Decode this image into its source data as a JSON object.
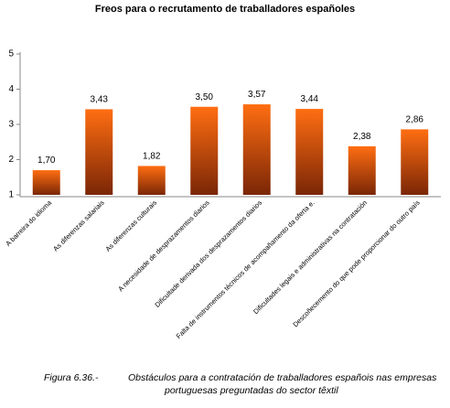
{
  "chart_data": {
    "type": "bar",
    "title": "Freos para o recrutamento de traballadores españoles",
    "categories": [
      "A barreira do idioma",
      "As diferenzas salariais",
      "As diferenzas culturais",
      "A necesidade de desprazamentos diarios",
      "Dificultade derivada dos desprazamentos diarios",
      "Falta de instrumentos técnicos de acompañamento da oferta e.",
      "Dificultades legais e administrativas na contratación",
      "Descoñecemento do que pode proporcionar do outro país"
    ],
    "values": [
      1.7,
      3.43,
      1.82,
      3.5,
      3.57,
      3.44,
      2.38,
      2.86
    ],
    "value_labels": [
      "1,70",
      "3,43",
      "1,82",
      "3,50",
      "3,57",
      "3,44",
      "2,38",
      "2,86"
    ],
    "gradient": [
      "#ff6e12",
      "#7a2606"
    ],
    "ylim": [
      1,
      5
    ],
    "yticks": [
      1,
      2,
      3,
      4,
      5
    ]
  },
  "caption": {
    "label": "Figura 6.36.-",
    "lines": [
      "Obstáculos para a contratación de traballadores españois nas empresas",
      "portuguesas preguntadas do sector têxtil"
    ]
  }
}
